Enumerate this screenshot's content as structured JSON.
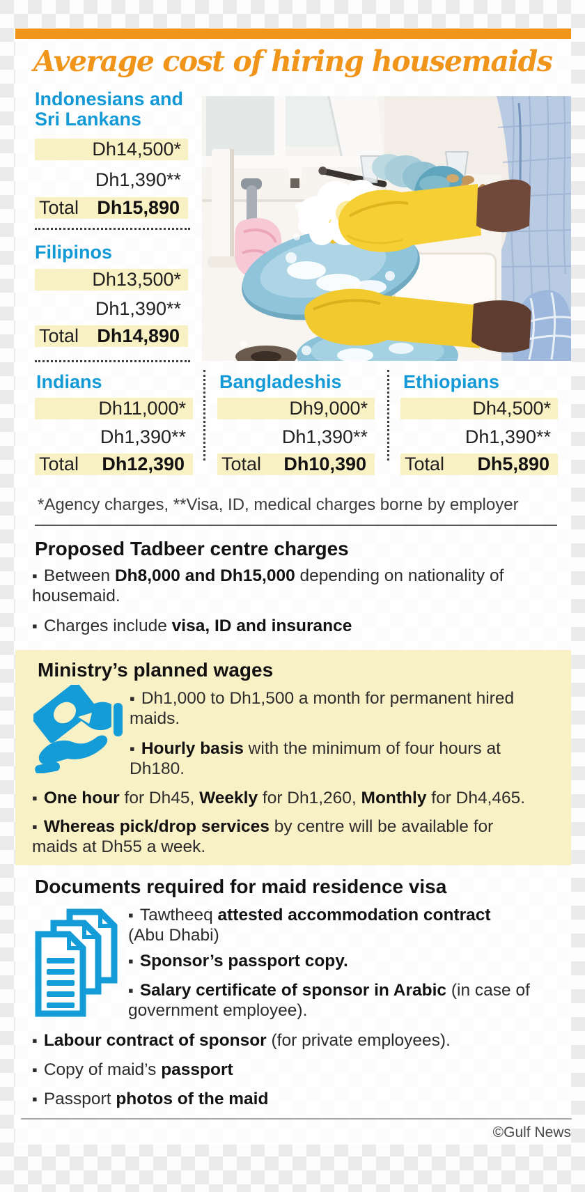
{
  "ui": {
    "bullet": "▪"
  },
  "colors": {
    "accent_orange": "#F0941A",
    "heading_blue": "#1399D6",
    "icon_blue": "#149CD8",
    "row_highlight_yellow": "#F8F1C4",
    "panel_yellow": "#F8F1C5",
    "text_dark": "#2E2B2C"
  },
  "header": {
    "title": "Average cost of hiring housemaids"
  },
  "cost_table": {
    "groups": [
      {
        "name": "Indonesians and Sri Lankans",
        "rows": [
          {
            "value": "Dh14,500*"
          },
          {
            "value": "Dh1,390**"
          },
          {
            "label": "Total",
            "value": "Dh15,890"
          }
        ]
      },
      {
        "name": "Filipinos",
        "rows": [
          {
            "value": "Dh13,500*"
          },
          {
            "value": "Dh1,390**"
          },
          {
            "label": "Total",
            "value": "Dh14,890"
          }
        ]
      },
      {
        "name": "Indians",
        "rows": [
          {
            "value": "Dh11,000*"
          },
          {
            "value": "Dh1,390**"
          },
          {
            "label": "Total",
            "value": "Dh12,390"
          }
        ]
      },
      {
        "name": "Bangladeshis",
        "rows": [
          {
            "value": "Dh9,000*"
          },
          {
            "value": "Dh1,390**"
          },
          {
            "label": "Total",
            "value": "Dh10,390"
          }
        ]
      },
      {
        "name": "Ethiopians",
        "rows": [
          {
            "value": "Dh4,500*"
          },
          {
            "value": "Dh1,390**"
          },
          {
            "label": "Total",
            "value": "Dh5,890"
          }
        ]
      }
    ],
    "footnote": "*Agency charges, **Visa, ID, medical charges borne by employer"
  },
  "tadbeer": {
    "heading": "Proposed Tadbeer centre charges",
    "bullets": [
      {
        "segments": [
          {
            "t": "Between "
          },
          {
            "t": "Dh8,000 and Dh15,000",
            "b": true
          },
          {
            "t": " depending on nationality of"
          },
          {
            "br": true
          },
          {
            "t": "housemaid."
          }
        ]
      },
      {
        "segments": [
          {
            "t": "Charges include "
          },
          {
            "t": "visa, ID and insurance",
            "b": true
          }
        ]
      }
    ]
  },
  "wages": {
    "heading": "Ministry’s planned wages",
    "icon": "money-in-hand-icon",
    "bullets": [
      {
        "segments": [
          {
            "t": "Dh1,000 to Dh1,500 a month for permanent hired"
          },
          {
            "br": true
          },
          {
            "t": "maids."
          }
        ]
      },
      {
        "segments": [
          {
            "t": "Hourly basis",
            "b": true
          },
          {
            "t": " with the minimum of four hours at"
          },
          {
            "br": true
          },
          {
            "t": "Dh180."
          }
        ]
      },
      {
        "segments": [
          {
            "t": "One hour",
            "b": true
          },
          {
            "t": " for Dh45, "
          },
          {
            "t": "Weekly",
            "b": true
          },
          {
            "t": " for Dh1,260, "
          },
          {
            "t": "Monthly",
            "b": true
          },
          {
            "t": " for Dh4,465."
          }
        ]
      },
      {
        "segments": [
          {
            "t": "Whereas pick/drop services",
            "b": true
          },
          {
            "t": " by centre will be available for"
          },
          {
            "br": true
          },
          {
            "t": "maids at Dh55 a week."
          }
        ]
      }
    ]
  },
  "documents": {
    "heading": "Documents required for maid residence visa",
    "icon": "documents-icon",
    "bullets": [
      {
        "segments": [
          {
            "t": "Tawtheeq "
          },
          {
            "t": "attested accommodation contract",
            "b": true
          },
          {
            "br": true
          },
          {
            "t": "(Abu Dhabi)"
          }
        ]
      },
      {
        "segments": [
          {
            "t": "Sponsor’s passport copy.",
            "b": true
          }
        ]
      },
      {
        "segments": [
          {
            "t": "Salary certificate of sponsor in Arabic",
            "b": true
          },
          {
            "t": " (in case of"
          },
          {
            "br": true
          },
          {
            "t": "government employee)."
          }
        ]
      },
      {
        "segments": [
          {
            "t": "Labour contract of sponsor",
            "b": true
          },
          {
            "t": " (for private employees)."
          }
        ]
      },
      {
        "segments": [
          {
            "t": "Copy of maid’s "
          },
          {
            "t": "passport",
            "b": true
          }
        ]
      },
      {
        "segments": [
          {
            "t": "Passport "
          },
          {
            "t": "photos of the maid",
            "b": true
          }
        ]
      }
    ]
  },
  "photo": {
    "alt": "Person in yellow rubber gloves washing a blue plate at a kitchen sink"
  },
  "credit": "©Gulf News"
}
